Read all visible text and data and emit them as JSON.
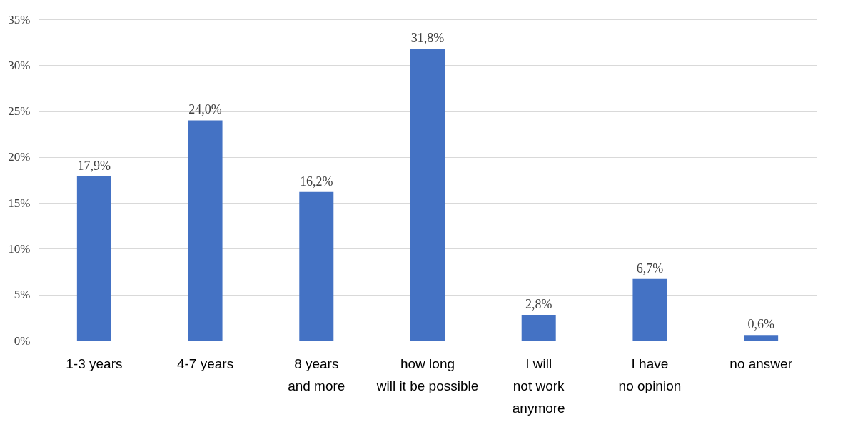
{
  "chart_data": {
    "type": "bar",
    "categories": [
      "1-3 years",
      "4-7 years",
      "8 years\nand more",
      "how long\nwill it be possible",
      "I will\nnot work\nanymore",
      "I have\nno opinion",
      "no answer"
    ],
    "values": [
      17.9,
      24.0,
      16.2,
      31.8,
      2.8,
      6.7,
      0.6
    ],
    "value_labels": [
      "17,9%",
      "24,0%",
      "16,2%",
      "31,8%",
      "2,8%",
      "6,7%",
      "0,6%"
    ],
    "color": "#4472c4",
    "ylim": [
      0,
      35
    ],
    "yticks": [
      {
        "value": 0,
        "label": "0%"
      },
      {
        "value": 5,
        "label": "5%"
      },
      {
        "value": 10,
        "label": "10%"
      },
      {
        "value": 15,
        "label": "15%"
      },
      {
        "value": 20,
        "label": "20%"
      },
      {
        "value": 25,
        "label": "25%"
      },
      {
        "value": 30,
        "label": "30%"
      },
      {
        "value": 35,
        "label": "35%"
      }
    ],
    "grid": "y"
  }
}
